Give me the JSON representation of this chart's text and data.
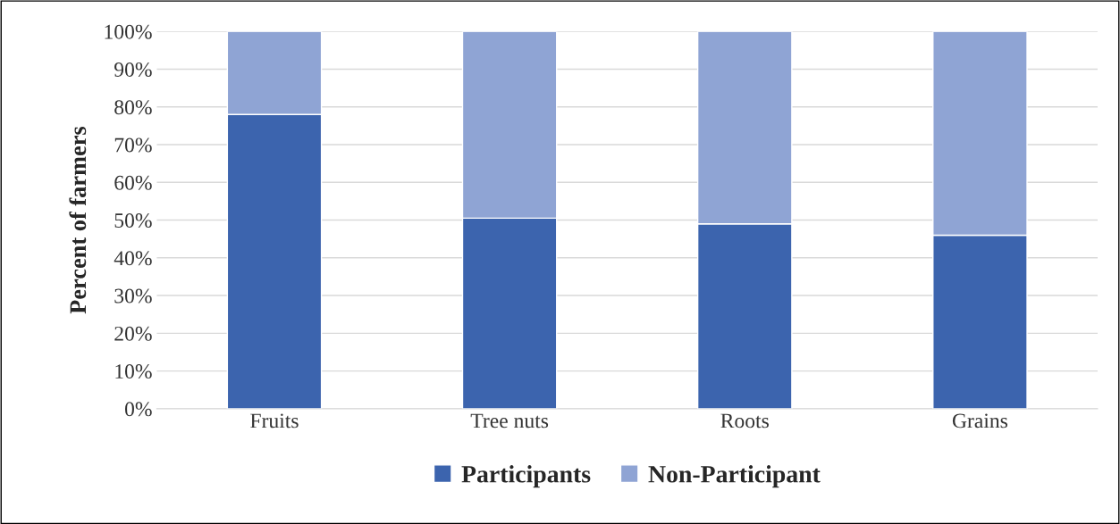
{
  "chart_data": {
    "type": "bar",
    "stacked": true,
    "ylabel": "Percent of farmers",
    "categories": [
      "Fruits",
      "Tree nuts",
      "Roots",
      "Grains"
    ],
    "series": [
      {
        "name": "Participants",
        "color": "#3c64ae",
        "values": [
          78,
          50.5,
          49,
          46
        ]
      },
      {
        "name": "Non-Participant",
        "color": "#8fa4d4",
        "values": [
          22,
          49.5,
          51,
          54
        ]
      }
    ],
    "ylim": [
      0,
      100
    ],
    "yticks": [
      {
        "value": 0,
        "label": "0%"
      },
      {
        "value": 10,
        "label": "10%"
      },
      {
        "value": 20,
        "label": "20%"
      },
      {
        "value": 30,
        "label": "30%"
      },
      {
        "value": 40,
        "label": "40%"
      },
      {
        "value": 50,
        "label": "50%"
      },
      {
        "value": 60,
        "label": "60%"
      },
      {
        "value": 70,
        "label": "70%"
      },
      {
        "value": 80,
        "label": "80%"
      },
      {
        "value": 90,
        "label": "90%"
      },
      {
        "value": 100,
        "label": "100%"
      }
    ],
    "grid": "y",
    "legend": "bottom"
  }
}
